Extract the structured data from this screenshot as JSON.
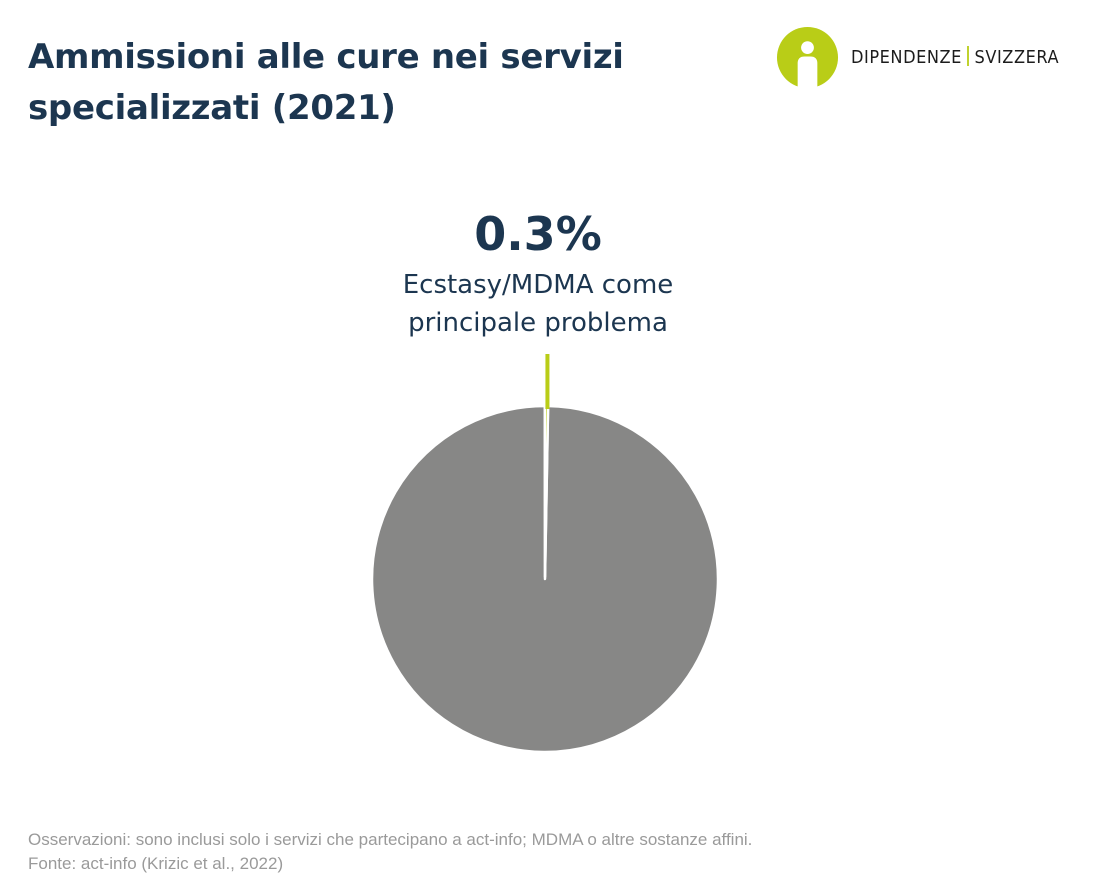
{
  "title": "Ammissioni alle cure nei servizi specializzati (2021)",
  "logo": {
    "brand_left": "DIPENDENZE",
    "brand_right": "SVIZZERA",
    "accent": "#b9cd17"
  },
  "highlight": {
    "value_label": "0.3%",
    "label_line1": "Ecstasy/MDMA come",
    "label_line2": "principale problema"
  },
  "chart_data": {
    "type": "pie",
    "slices": [
      {
        "label": "Ecstasy/MDMA come principale problema",
        "value": 0.3,
        "color": "#b9cd17"
      },
      {
        "label": "",
        "value": 99.7,
        "color": "#878786"
      }
    ],
    "title": "Ammissioni alle cure nei servizi specializzati (2021)"
  },
  "footer": {
    "note": "Osservazioni: sono inclusi solo i servizi che partecipano a act-info; MDMA o altre sostanze affini.",
    "source": "Fonte: act-info (Krizic et al., 2022)"
  },
  "colors": {
    "title": "#1c3650",
    "footer": "#9a9a9a"
  }
}
